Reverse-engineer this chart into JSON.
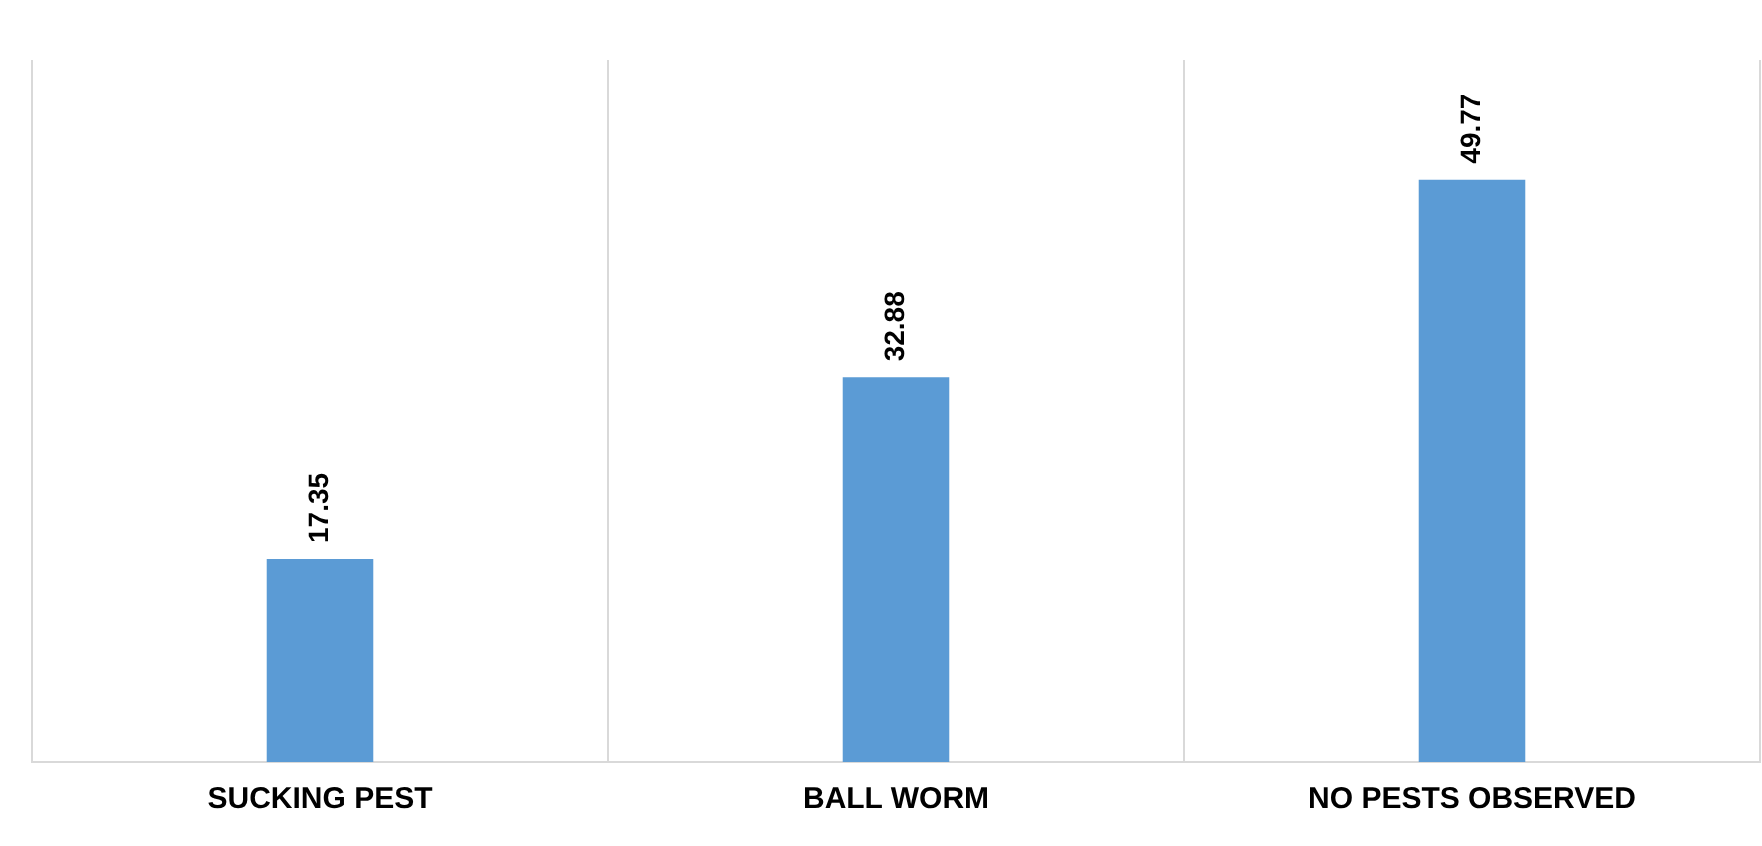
{
  "chart_data": {
    "type": "bar",
    "categories": [
      "SUCKING PEST",
      "BALL WORM",
      "NO PESTS OBSERVED"
    ],
    "values": [
      17.35,
      32.88,
      49.77
    ],
    "color": "#5b9bd5",
    "data_labels": true,
    "grid": "x",
    "legend": false
  }
}
